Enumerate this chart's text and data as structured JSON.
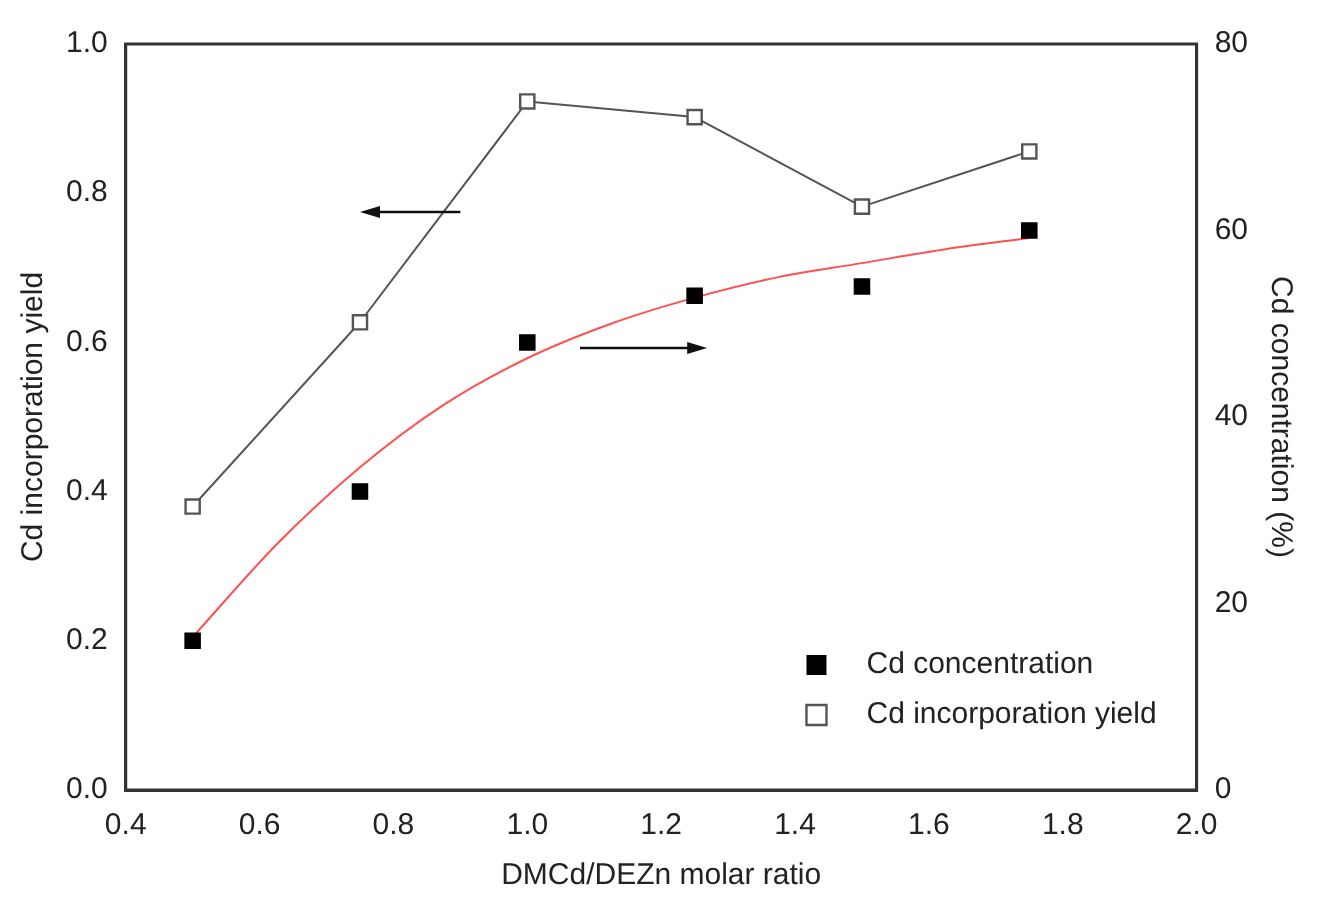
{
  "chart_data": {
    "type": "scatter",
    "xlabel": "DMCd/DEZn molar ratio",
    "ylabel": "Cd incorporation yield",
    "y2label": "Cd concentration (%)",
    "xlim": [
      0.4,
      2.0
    ],
    "xticks": [
      0.4,
      0.6,
      0.8,
      {
        "value": 1.0,
        "label": "1.0"
      },
      1.2,
      1.4,
      1.6,
      1.8,
      {
        "value": 2.0,
        "label": "2.0"
      }
    ],
    "ylim": [
      0,
      1.0
    ],
    "yticks": [
      {
        "value": 0,
        "label": "0.0"
      },
      0.2,
      0.4,
      0.6,
      0.8,
      {
        "value": 1.0,
        "label": "1.0"
      }
    ],
    "y2lim": [
      0,
      80
    ],
    "y2ticks": [
      0,
      20,
      40,
      60,
      80
    ],
    "legend": "bottom right",
    "grid": false,
    "series": [
      {
        "name": "Cd concentration",
        "axis": "y2",
        "marker": "square",
        "color": "#000000",
        "x": [
          0.5,
          0.75,
          1.0,
          1.25,
          1.5,
          1.75
        ],
        "values": [
          16,
          32,
          48,
          53,
          54,
          60
        ]
      },
      {
        "name": "Cd incorporation yield",
        "type": "line",
        "marker": "square",
        "color": "#555555",
        "x": [
          0.5,
          0.75,
          1.0,
          1.25,
          1.5,
          1.75
        ],
        "values": [
          0.38,
          0.627,
          0.923,
          0.902,
          0.782,
          0.856
        ]
      },
      {
        "type": "line",
        "axis": "y2",
        "marker": "none",
        "color": "#ff5050",
        "x": [
          0.5,
          0.625,
          0.75,
          0.875,
          1.0,
          1.125,
          1.25,
          1.375,
          1.5,
          1.625,
          1.75
        ],
        "values": [
          16.4,
          26.3,
          34.6,
          41.3,
          46.3,
          50,
          52.8,
          55,
          56.5,
          58,
          59.2
        ]
      }
    ]
  }
}
